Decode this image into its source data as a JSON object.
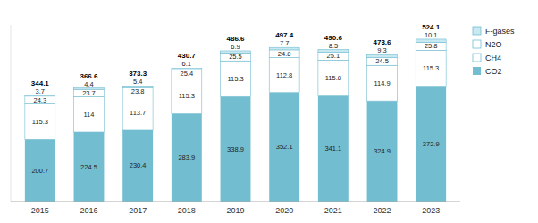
{
  "chart_data": {
    "type": "bar",
    "stacked": true,
    "categories": [
      "2015",
      "2016",
      "2017",
      "2018",
      "2019",
      "2020",
      "2021",
      "2022",
      "2023"
    ],
    "series": [
      {
        "name": "CO2",
        "color": "#72bdd0",
        "values": [
          200.7,
          224.5,
          230.4,
          283.9,
          338.9,
          352.1,
          341.1,
          324.9,
          372.9
        ]
      },
      {
        "name": "CH4",
        "color": "#ffffff",
        "values": [
          115.3,
          114.0,
          113.7,
          115.3,
          115.3,
          112.8,
          115.8,
          114.9,
          115.3
        ]
      },
      {
        "name": "N2O",
        "color": "#ffffff",
        "values": [
          24.3,
          23.7,
          23.8,
          25.4,
          25.5,
          24.8,
          25.1,
          24.5,
          25.8
        ]
      },
      {
        "name": "F-gases",
        "color": "#c8e8f2",
        "values": [
          3.7,
          4.4,
          5.4,
          6.1,
          6.9,
          7.7,
          8.5,
          9.3,
          10.1
        ]
      }
    ],
    "totals": [
      344.1,
      366.6,
      373.3,
      430.7,
      486.6,
      497.4,
      490.6,
      473.6,
      524.1
    ],
    "ylim": [
      0,
      570
    ],
    "data_labels": true,
    "tick_labels": "x",
    "legend": "right",
    "grid": false
  }
}
